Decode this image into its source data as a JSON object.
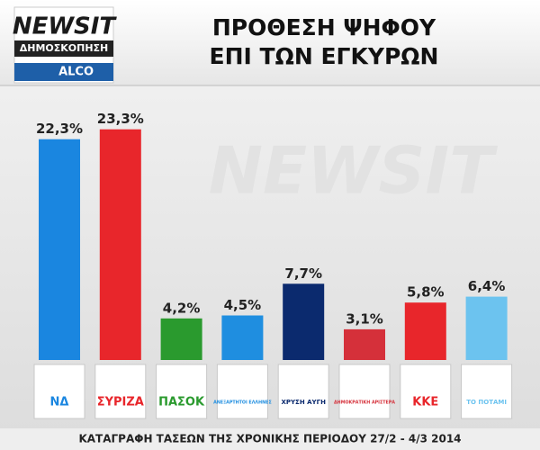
{
  "chart_data": {
    "type": "bar",
    "brand": "NEWSIT",
    "brand_label": "ΔΗΜΟΣΚΟΠΗΣΗ",
    "pollster": "ALCO",
    "title": "ΠΡΟΘΕΣΗ ΨΗΦΟΥ",
    "subtitle": "ΕΠΙ ΤΩΝ ΕΓΚΥΡΩΝ",
    "categories": [
      "ΝΔ",
      "ΣΥΡΙΖΑ",
      "ΠΑΣΟΚ",
      "ΑΝΕΞΑΡΤΗΤΟΙ ΕΛΛΗΝΕΣ",
      "ΧΡΥΣΗ ΑΥΓΗ",
      "ΔΗΜΟΚΡΑΤΙΚΗ ΑΡΙΣΤΕΡΑ",
      "ΚΚΕ",
      "ΤΟ ΠΟΤΑΜΙ"
    ],
    "values": [
      22.3,
      23.3,
      4.2,
      4.5,
      7.7,
      3.1,
      5.8,
      6.4
    ],
    "value_labels": [
      "22,3%",
      "23,3%",
      "4,2%",
      "4,5%",
      "7,7%",
      "3,1%",
      "5,8%",
      "6,4%"
    ],
    "colors": [
      "#1a86e0",
      "#e8262b",
      "#2a9a2e",
      "#1f8ee0",
      "#0b2a6e",
      "#d5303a",
      "#e8262b",
      "#6cc3ef"
    ],
    "caption": "ΚΑΤΑΓΡΑΦΗ ΤΑΣΕΩΝ ΤΗΣ ΧΡΟΝΙΚΗΣ ΠΕΡΙΟΔΟΥ 27/2 - 4/3 2014"
  }
}
